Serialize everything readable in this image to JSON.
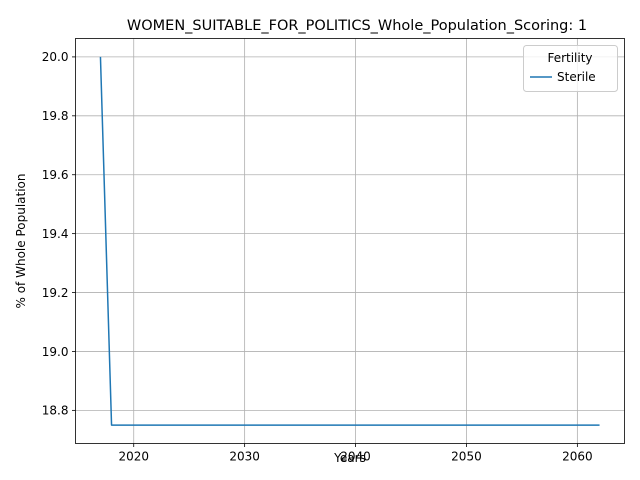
{
  "chart_data": {
    "type": "line",
    "title": "WOMEN_SUITABLE_FOR_POLITICS_Whole_Population_Scoring: 1",
    "xlabel": "Years",
    "ylabel": "% of Whole Population",
    "xlim": [
      2014.75,
      2064.25
    ],
    "ylim": [
      18.6875,
      20.0625
    ],
    "x_ticks": [
      2020,
      2030,
      2040,
      2050,
      2060
    ],
    "y_ticks": [
      18.8,
      19.0,
      19.2,
      19.4,
      19.6,
      19.8,
      20.0
    ],
    "y_tick_labels": [
      "18.8",
      "19.0",
      "19.2",
      "19.4",
      "19.6",
      "19.8",
      "20.0"
    ],
    "grid": true,
    "legend": {
      "title": "Fertility",
      "placement": "top-right"
    },
    "series": [
      {
        "name": "Sterile",
        "color": "#1f77b4",
        "x": [
          2017,
          2018,
          2019,
          2020,
          2021,
          2022,
          2023,
          2024,
          2025,
          2026,
          2027,
          2028,
          2029,
          2030,
          2031,
          2032,
          2033,
          2034,
          2035,
          2036,
          2037,
          2038,
          2039,
          2040,
          2041,
          2042,
          2043,
          2044,
          2045,
          2046,
          2047,
          2048,
          2049,
          2050,
          2051,
          2052,
          2053,
          2054,
          2055,
          2056,
          2057,
          2058,
          2059,
          2060,
          2061,
          2062
        ],
        "y": [
          20.0,
          18.75,
          18.75,
          18.75,
          18.75,
          18.75,
          18.75,
          18.75,
          18.75,
          18.75,
          18.75,
          18.75,
          18.75,
          18.75,
          18.75,
          18.75,
          18.75,
          18.75,
          18.75,
          18.75,
          18.75,
          18.75,
          18.75,
          18.75,
          18.75,
          18.75,
          18.75,
          18.75,
          18.75,
          18.75,
          18.75,
          18.75,
          18.75,
          18.75,
          18.75,
          18.75,
          18.75,
          18.75,
          18.75,
          18.75,
          18.75,
          18.75,
          18.75,
          18.75,
          18.75,
          18.75
        ]
      }
    ]
  }
}
